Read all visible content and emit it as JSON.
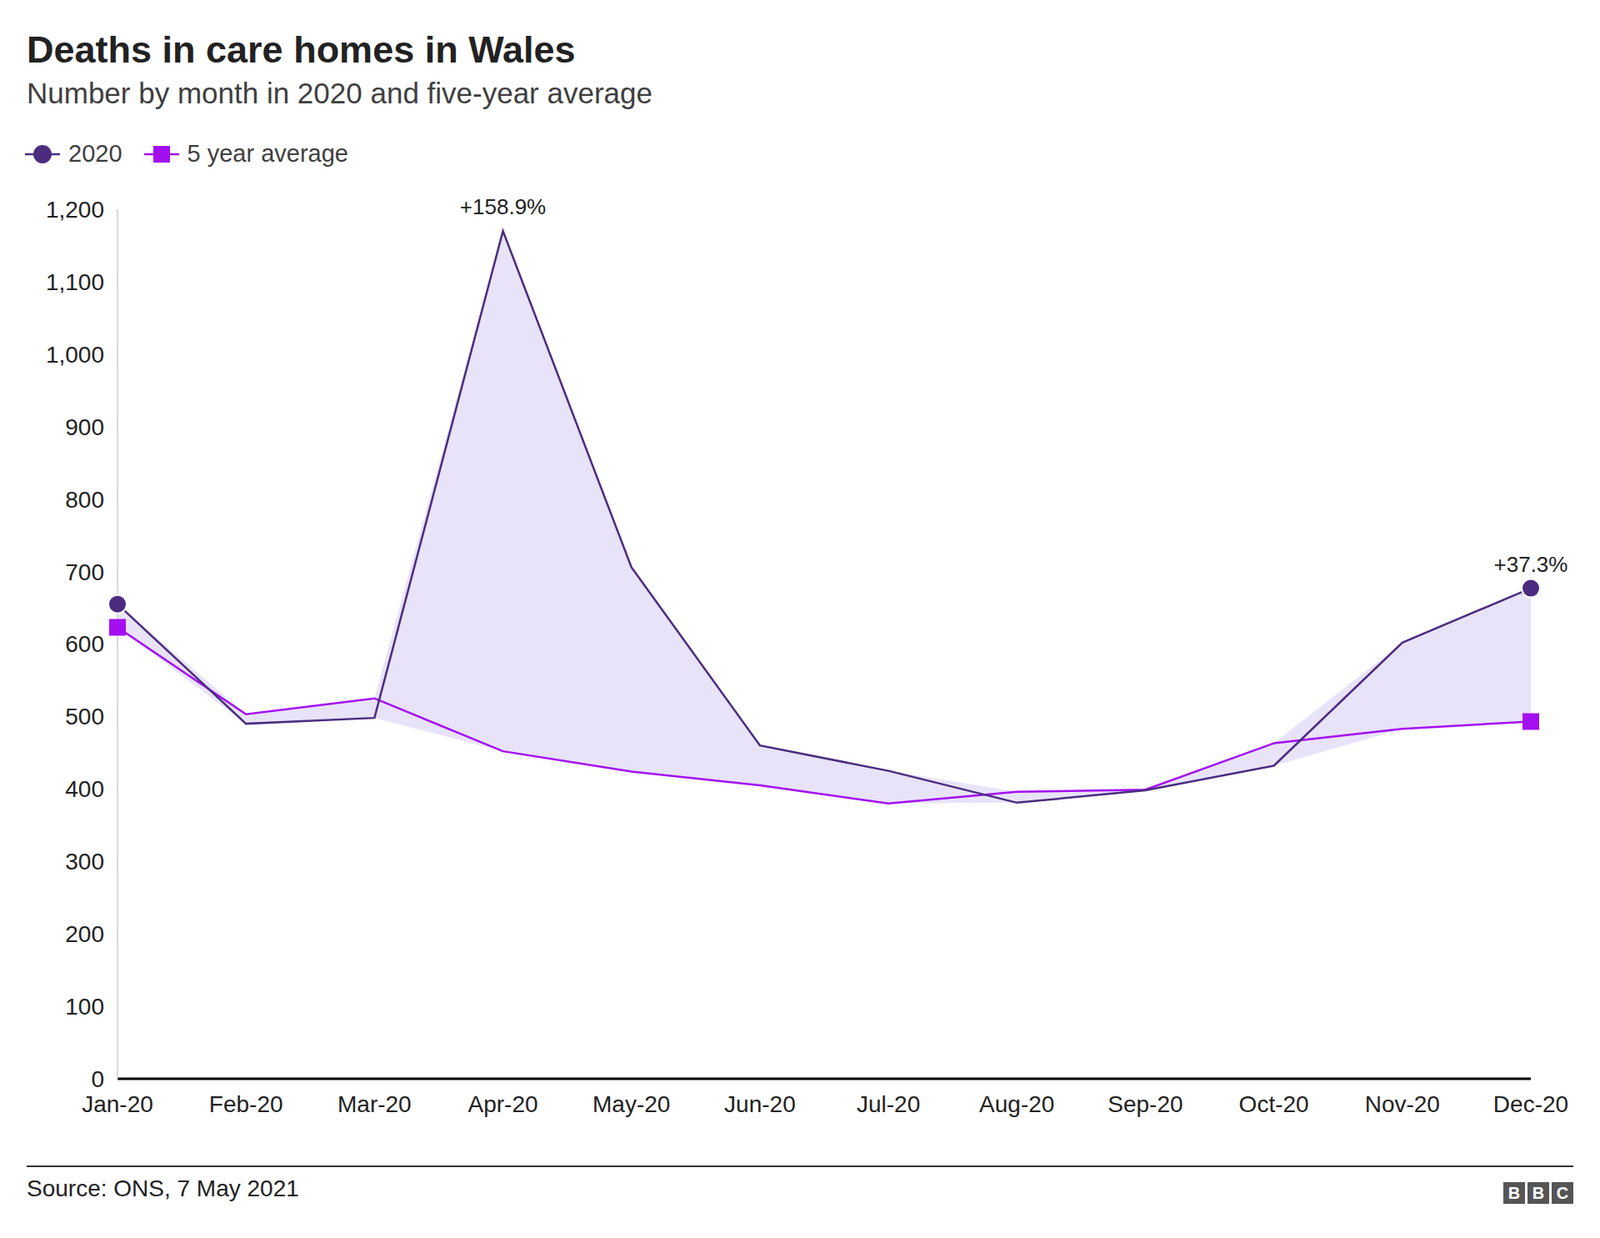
{
  "chart_data": {
    "type": "line",
    "title": "Deaths in care homes in Wales",
    "subtitle": "Number by month in 2020 and five-year average",
    "categories": [
      "Jan-20",
      "Feb-20",
      "Mar-20",
      "Apr-20",
      "May-20",
      "Jun-20",
      "Jul-20",
      "Aug-20",
      "Sep-20",
      "Oct-20",
      "Nov-20",
      "Dec-20"
    ],
    "series": [
      {
        "name": "2020",
        "color": "#4b2c7f",
        "marker": "circle",
        "values": [
          655,
          490,
          498,
          1170,
          706,
          460,
          425,
          381,
          398,
          432,
          602,
          677
        ]
      },
      {
        "name": "5 year average",
        "color": "#a40ff0",
        "marker": "square",
        "values": [
          623,
          503,
          525,
          452,
          424,
          405,
          380,
          396,
          399,
          463,
          483,
          493
        ]
      }
    ],
    "ylim": [
      0,
      1200
    ],
    "yticks": [
      0,
      100,
      200,
      300,
      400,
      500,
      600,
      700,
      800,
      900,
      {
        "value": 1000,
        "label": "1,000"
      },
      {
        "value": 1100,
        "label": "1,100"
      },
      {
        "value": 1200,
        "label": "1,200"
      }
    ],
    "grid": false,
    "annotations": [
      {
        "category": "Apr-20",
        "text": "+158.9%"
      },
      {
        "category": "Dec-20",
        "text": "+37.3%"
      }
    ],
    "source": "Source: ONS, 7 May 2021",
    "logo": "BBC"
  }
}
